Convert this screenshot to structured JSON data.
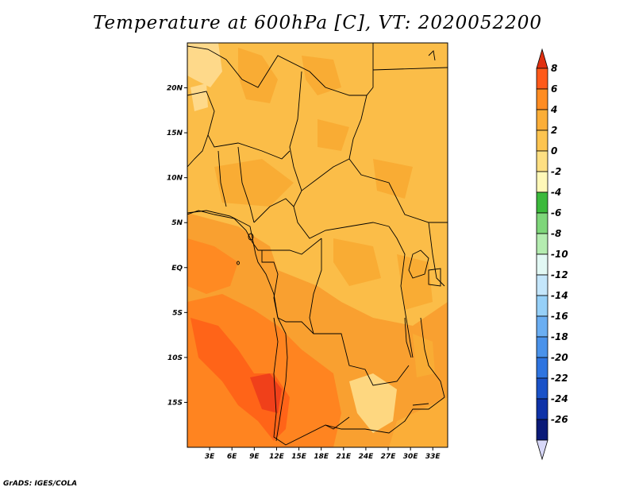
{
  "title": "Temperature at 600hPa [C], VT: 2020052200",
  "credit": "GrADS: IGES/COLA",
  "map": {
    "lon_range": [
      0,
      35
    ],
    "lat_range": [
      -20,
      25
    ],
    "lat_ticks": [
      {
        "value": 20,
        "label": "20N"
      },
      {
        "value": 15,
        "label": "15N"
      },
      {
        "value": 10,
        "label": "10N"
      },
      {
        "value": 5,
        "label": "5N"
      },
      {
        "value": 0,
        "label": "EQ"
      },
      {
        "value": -5,
        "label": "5S"
      },
      {
        "value": -10,
        "label": "10S"
      },
      {
        "value": -15,
        "label": "15S"
      }
    ],
    "lon_ticks": [
      {
        "value": 3,
        "label": "3E"
      },
      {
        "value": 6,
        "label": "6E"
      },
      {
        "value": 9,
        "label": "9E"
      },
      {
        "value": 12,
        "label": "12E"
      },
      {
        "value": 15,
        "label": "15E"
      },
      {
        "value": 18,
        "label": "18E"
      },
      {
        "value": 21,
        "label": "21E"
      },
      {
        "value": 24,
        "label": "24E"
      },
      {
        "value": 27,
        "label": "27E"
      },
      {
        "value": 30,
        "label": "30E"
      },
      {
        "value": 33,
        "label": "33E"
      }
    ]
  },
  "colorbar": {
    "levels": [
      "8",
      "6",
      "4",
      "2",
      "0",
      "-2",
      "-4",
      "-6",
      "-8",
      "-10",
      "-12",
      "-14",
      "-16",
      "-18",
      "-20",
      "-22",
      "-24",
      "-26"
    ],
    "colors": [
      "#e03010",
      "#ff5a1a",
      "#ff8c22",
      "#fbae38",
      "#fdc450",
      "#fedf82",
      "#fff8b8",
      "#3cba3c",
      "#7ed67a",
      "#b4ecb0",
      "#e2f8f4",
      "#c4e6fb",
      "#96d0f8",
      "#6aaef2",
      "#4a92ea",
      "#2e74e0",
      "#1a52c8",
      "#0e32a8",
      "#0a1a78",
      "#d8d8f8"
    ]
  }
}
